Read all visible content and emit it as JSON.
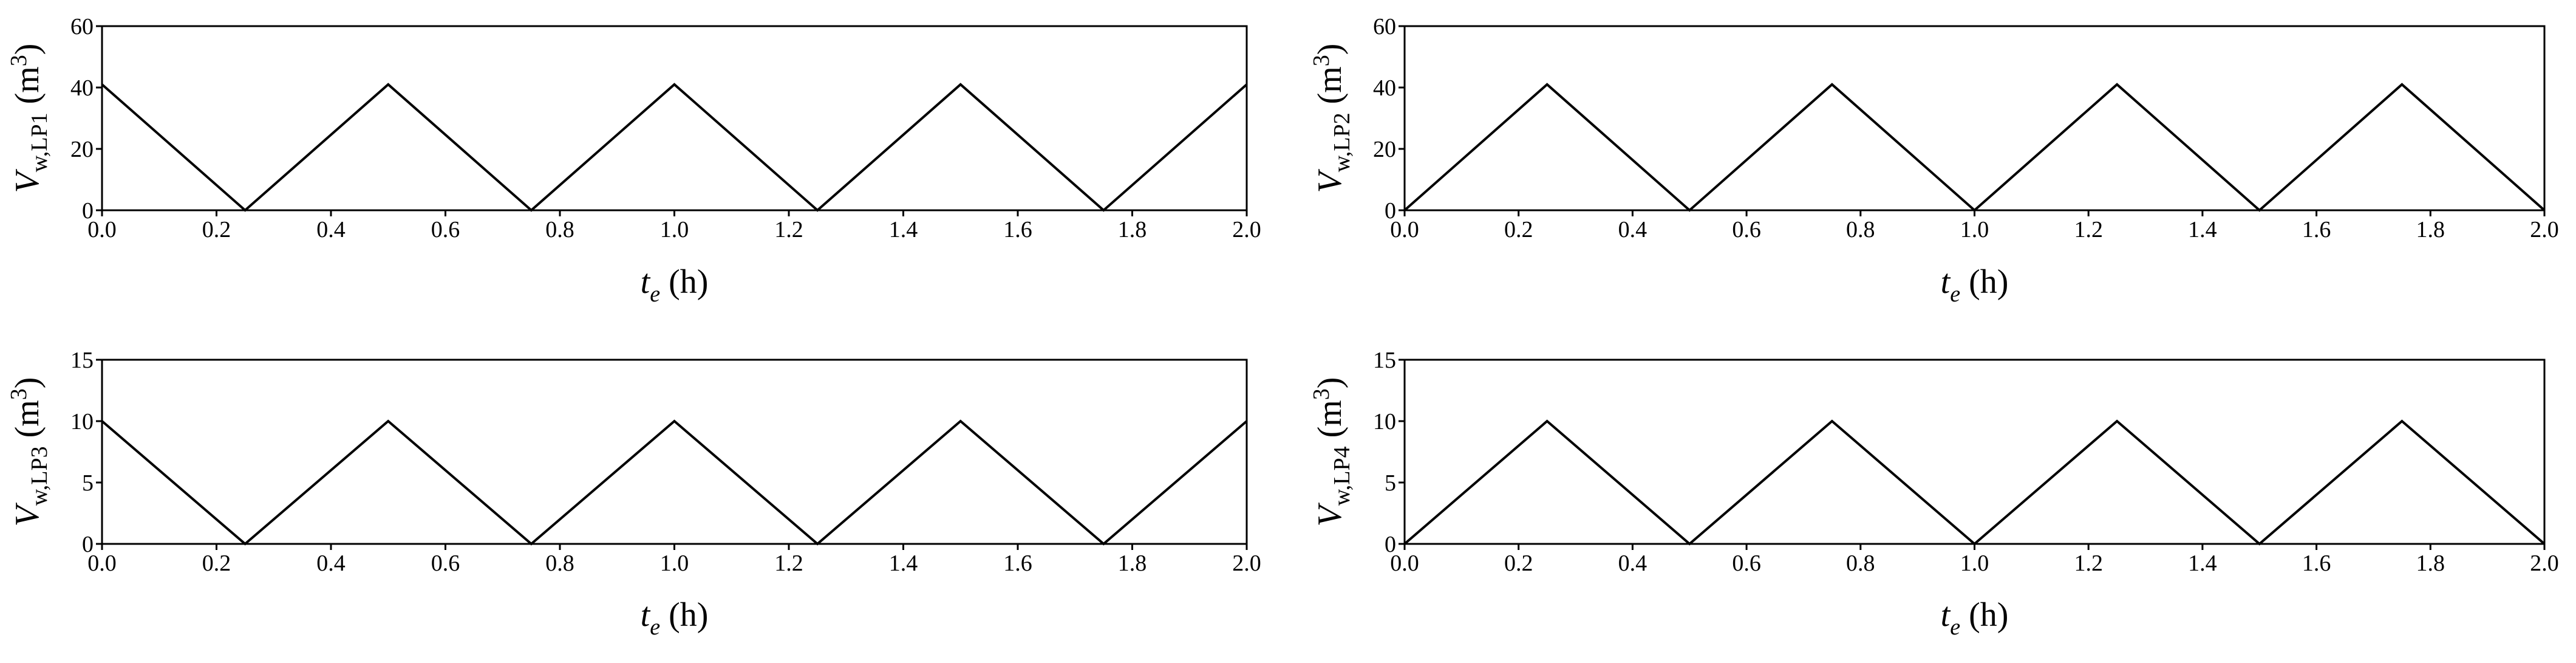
{
  "chart_data": [
    {
      "type": "line",
      "x": [
        0,
        0.25,
        0.5,
        0.75,
        1.0,
        1.25,
        1.5,
        1.75,
        2.0
      ],
      "values": [
        41,
        0,
        41,
        0,
        41,
        0,
        41,
        0,
        41
      ],
      "color": "#000000",
      "xlabel": [
        "t",
        "e",
        " (h)"
      ],
      "ylabel": [
        "V",
        "w,LP1",
        " (m",
        "3",
        ")"
      ],
      "xlim": [
        0,
        2
      ],
      "ylim": [
        0,
        60
      ],
      "xticks": [
        {
          "value": 0,
          "label": "0.0"
        },
        0.2,
        0.4,
        0.6,
        0.8,
        {
          "value": 1,
          "label": "1.0"
        },
        1.2,
        1.4,
        1.6,
        1.8,
        {
          "value": 2,
          "label": "2.0"
        }
      ],
      "yticks": [
        0,
        20,
        40,
        60
      ]
    },
    {
      "type": "line",
      "x": [
        0,
        0.25,
        0.5,
        0.75,
        1.0,
        1.25,
        1.5,
        1.75,
        2.0
      ],
      "values": [
        0,
        41,
        0,
        41,
        0,
        41,
        0,
        41,
        0
      ],
      "color": "#000000",
      "xlabel": [
        "t",
        "e",
        " (h)"
      ],
      "ylabel": [
        "V",
        "w,LP2",
        " (m",
        "3",
        ")"
      ],
      "xlim": [
        0,
        2
      ],
      "ylim": [
        0,
        60
      ],
      "xticks": [
        {
          "value": 0,
          "label": "0.0"
        },
        0.2,
        0.4,
        0.6,
        0.8,
        {
          "value": 1,
          "label": "1.0"
        },
        1.2,
        1.4,
        1.6,
        1.8,
        {
          "value": 2,
          "label": "2.0"
        }
      ],
      "yticks": [
        0,
        20,
        40,
        60
      ]
    },
    {
      "type": "line",
      "x": [
        0,
        0.25,
        0.5,
        0.75,
        1.0,
        1.25,
        1.5,
        1.75,
        2.0
      ],
      "values": [
        10,
        0,
        10,
        0,
        10,
        0,
        10,
        0,
        10
      ],
      "color": "#000000",
      "xlabel": [
        "t",
        "e",
        " (h)"
      ],
      "ylabel": [
        "V",
        "w,LP3",
        " (m",
        "3",
        ")"
      ],
      "xlim": [
        0,
        2
      ],
      "ylim": [
        0,
        15
      ],
      "xticks": [
        {
          "value": 0,
          "label": "0.0"
        },
        0.2,
        0.4,
        0.6,
        0.8,
        {
          "value": 1,
          "label": "1.0"
        },
        1.2,
        1.4,
        1.6,
        1.8,
        {
          "value": 2,
          "label": "2.0"
        }
      ],
      "yticks": [
        0,
        5,
        10,
        15
      ]
    },
    {
      "type": "line",
      "x": [
        0,
        0.25,
        0.5,
        0.75,
        1.0,
        1.25,
        1.5,
        1.75,
        2.0
      ],
      "values": [
        0,
        10,
        0,
        10,
        0,
        10,
        0,
        10,
        0
      ],
      "color": "#000000",
      "xlabel": [
        "t",
        "e",
        " (h)"
      ],
      "ylabel": [
        "V",
        "w,LP4",
        " (m",
        "3",
        ")"
      ],
      "xlim": [
        0,
        2
      ],
      "ylim": [
        0,
        15
      ],
      "xticks": [
        {
          "value": 0,
          "label": "0.0"
        },
        0.2,
        0.4,
        0.6,
        0.8,
        {
          "value": 1,
          "label": "1.0"
        },
        1.2,
        1.4,
        1.6,
        1.8,
        {
          "value": 2,
          "label": "2.0"
        }
      ],
      "yticks": [
        0,
        5,
        10,
        15
      ]
    }
  ]
}
